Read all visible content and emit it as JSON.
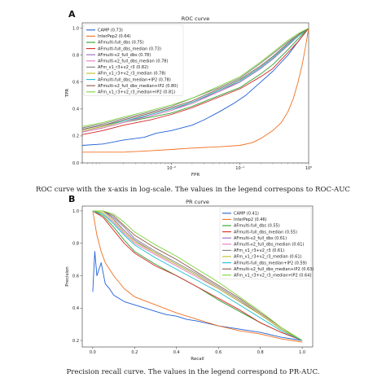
{
  "captions": {
    "a": "ROC curve with the x-axis in log-scale. The values in the legend correspons to ROC-AUC",
    "b": "Precision recall curve. The values in the legend correspond to PR-AUC."
  },
  "chart_data": [
    {
      "panel": "A",
      "type": "line",
      "title": "ROC curve",
      "xlabel": "FPR",
      "ylabel": "TPR",
      "xscale": "log",
      "xlim": [
        0.0005,
        1
      ],
      "ylim": [
        0,
        1.04
      ],
      "xticks": [
        0.01,
        0.1,
        1
      ],
      "xtick_labels": [
        "10⁻²",
        "10⁻¹",
        "10⁰"
      ],
      "yticks": [
        0,
        0.2,
        0.4,
        0.6,
        0.8,
        1.0
      ],
      "ytick_labels": [
        "0.0",
        "0.2",
        "0.4",
        "0.6",
        "0.8",
        "1.0"
      ],
      "legend_position": "upper-left",
      "series": [
        {
          "name": "CAMP (0.73)",
          "color": "#1f5fd6",
          "x": [
            0.0005,
            0.001,
            0.002,
            0.004,
            0.006,
            0.01,
            0.02,
            0.03,
            0.05,
            0.08,
            0.12,
            0.2,
            0.3,
            0.5,
            0.7,
            1.0
          ],
          "y": [
            0.13,
            0.14,
            0.17,
            0.19,
            0.22,
            0.24,
            0.28,
            0.32,
            0.38,
            0.44,
            0.5,
            0.6,
            0.68,
            0.8,
            0.9,
            1.0
          ]
        },
        {
          "name": "InterPep2 (0.64)",
          "color": "#f07020",
          "x": [
            0.0005,
            0.002,
            0.005,
            0.01,
            0.02,
            0.05,
            0.1,
            0.15,
            0.2,
            0.3,
            0.4,
            0.5,
            0.6,
            0.7,
            0.8,
            0.9,
            1.0
          ],
          "y": [
            0.08,
            0.08,
            0.09,
            0.1,
            0.11,
            0.12,
            0.13,
            0.15,
            0.18,
            0.24,
            0.3,
            0.38,
            0.48,
            0.6,
            0.72,
            0.86,
            1.0
          ]
        },
        {
          "name": "AFmulti-full_dbs (0.75)",
          "color": "#2ca02c",
          "x": [
            0.0005,
            0.001,
            0.002,
            0.005,
            0.01,
            0.02,
            0.05,
            0.1,
            0.2,
            0.3,
            0.5,
            0.7,
            1.0
          ],
          "y": [
            0.23,
            0.26,
            0.3,
            0.34,
            0.37,
            0.42,
            0.5,
            0.56,
            0.66,
            0.73,
            0.84,
            0.92,
            1.0
          ]
        },
        {
          "name": "AFmulti-full_dbs_median (0.73)",
          "color": "#d62728",
          "x": [
            0.0005,
            0.001,
            0.002,
            0.005,
            0.01,
            0.02,
            0.05,
            0.1,
            0.2,
            0.3,
            0.5,
            0.7,
            1.0
          ],
          "y": [
            0.21,
            0.24,
            0.28,
            0.32,
            0.36,
            0.41,
            0.49,
            0.55,
            0.64,
            0.7,
            0.82,
            0.9,
            1.0
          ]
        },
        {
          "name": "AFmulti-v2_full_dbs (0.78)",
          "color": "#9467bd",
          "x": [
            0.0005,
            0.001,
            0.002,
            0.005,
            0.01,
            0.02,
            0.05,
            0.1,
            0.2,
            0.3,
            0.5,
            0.7,
            1.0
          ],
          "y": [
            0.24,
            0.27,
            0.31,
            0.35,
            0.39,
            0.45,
            0.53,
            0.6,
            0.7,
            0.77,
            0.87,
            0.94,
            1.0
          ]
        },
        {
          "name": "AFmulti-v2_full_dbs_median (0.78)",
          "color": "#e377c2",
          "x": [
            0.0005,
            0.001,
            0.002,
            0.005,
            0.01,
            0.02,
            0.05,
            0.1,
            0.2,
            0.3,
            0.5,
            0.7,
            1.0
          ],
          "y": [
            0.23,
            0.26,
            0.3,
            0.35,
            0.39,
            0.44,
            0.53,
            0.61,
            0.71,
            0.78,
            0.88,
            0.94,
            1.0
          ]
        },
        {
          "name": "AFm_v1_r3+v2_r3 (0.82)",
          "color": "#7f7f7f",
          "x": [
            0.0005,
            0.001,
            0.002,
            0.005,
            0.01,
            0.02,
            0.05,
            0.1,
            0.2,
            0.3,
            0.5,
            0.7,
            1.0
          ],
          "y": [
            0.26,
            0.29,
            0.33,
            0.38,
            0.42,
            0.48,
            0.56,
            0.63,
            0.74,
            0.81,
            0.9,
            0.95,
            1.0
          ]
        },
        {
          "name": "AFm_v1_r3+v2_r3_median (0.78)",
          "color": "#bcbd22",
          "x": [
            0.0005,
            0.001,
            0.002,
            0.005,
            0.01,
            0.02,
            0.05,
            0.1,
            0.2,
            0.3,
            0.5,
            0.7,
            1.0
          ],
          "y": [
            0.24,
            0.27,
            0.31,
            0.36,
            0.4,
            0.45,
            0.54,
            0.61,
            0.71,
            0.78,
            0.88,
            0.94,
            1.0
          ]
        },
        {
          "name": "AFmulti-full_dbs_median+IP2 (0.78)",
          "color": "#17becf",
          "x": [
            0.0005,
            0.001,
            0.002,
            0.005,
            0.01,
            0.02,
            0.05,
            0.1,
            0.2,
            0.3,
            0.5,
            0.7,
            1.0
          ],
          "y": [
            0.25,
            0.28,
            0.31,
            0.36,
            0.4,
            0.45,
            0.54,
            0.61,
            0.71,
            0.78,
            0.88,
            0.94,
            1.0
          ]
        },
        {
          "name": "AFmulti-v2_full_dbs_median+IP2 (0.80)",
          "color": "#8c564b",
          "x": [
            0.0005,
            0.001,
            0.002,
            0.005,
            0.01,
            0.02,
            0.05,
            0.1,
            0.2,
            0.3,
            0.5,
            0.7,
            1.0
          ],
          "y": [
            0.25,
            0.28,
            0.32,
            0.37,
            0.41,
            0.46,
            0.55,
            0.62,
            0.72,
            0.79,
            0.89,
            0.95,
            1.0
          ]
        },
        {
          "name": "AFm_v1_r3+v2_r3_median+IP2 (0.81)",
          "color": "#7dd33a",
          "x": [
            0.0005,
            0.001,
            0.002,
            0.005,
            0.01,
            0.02,
            0.05,
            0.1,
            0.2,
            0.3,
            0.5,
            0.7,
            1.0
          ],
          "y": [
            0.27,
            0.3,
            0.34,
            0.39,
            0.43,
            0.48,
            0.57,
            0.64,
            0.75,
            0.82,
            0.91,
            0.96,
            1.0
          ]
        }
      ]
    },
    {
      "panel": "B",
      "type": "line",
      "title": "PR curve",
      "xlabel": "Recall",
      "ylabel": "Precision",
      "xlim": [
        -0.05,
        1.05
      ],
      "ylim": [
        0.16,
        1.03
      ],
      "xticks": [
        0,
        0.2,
        0.4,
        0.6,
        0.8,
        1.0
      ],
      "xtick_labels": [
        "0.0",
        "0.2",
        "0.4",
        "0.6",
        "0.8",
        "1.0"
      ],
      "yticks": [
        0.2,
        0.4,
        0.6,
        0.8,
        1.0
      ],
      "ytick_labels": [
        "0.2",
        "0.4",
        "0.6",
        "0.8",
        "1.0"
      ],
      "legend_position": "upper-right",
      "series": [
        {
          "name": "CAMP (0.41)",
          "color": "#1f5fd6",
          "x": [
            0.0,
            0.01,
            0.02,
            0.04,
            0.06,
            0.08,
            0.1,
            0.15,
            0.2,
            0.25,
            0.3,
            0.35,
            0.4,
            0.45,
            0.5,
            0.6,
            0.7,
            0.8,
            0.9,
            1.0
          ],
          "y": [
            0.5,
            0.75,
            0.6,
            0.68,
            0.55,
            0.52,
            0.48,
            0.44,
            0.42,
            0.4,
            0.38,
            0.36,
            0.35,
            0.33,
            0.32,
            0.29,
            0.27,
            0.25,
            0.22,
            0.2
          ]
        },
        {
          "name": "InterPep2 (0.46)",
          "color": "#f07020",
          "x": [
            0.0,
            0.02,
            0.04,
            0.06,
            0.1,
            0.15,
            0.2,
            0.3,
            0.4,
            0.5,
            0.6,
            0.7,
            0.8,
            0.9,
            1.0
          ],
          "y": [
            1.0,
            0.85,
            0.75,
            0.68,
            0.6,
            0.52,
            0.47,
            0.42,
            0.37,
            0.33,
            0.29,
            0.26,
            0.24,
            0.21,
            0.19
          ]
        },
        {
          "name": "AFmulti-full_dbs (0.55)",
          "color": "#2ca02c",
          "x": [
            0.0,
            0.05,
            0.1,
            0.15,
            0.2,
            0.3,
            0.4,
            0.5,
            0.6,
            0.7,
            0.8,
            0.9,
            1.0
          ],
          "y": [
            1.0,
            0.97,
            0.9,
            0.82,
            0.75,
            0.67,
            0.6,
            0.53,
            0.45,
            0.38,
            0.31,
            0.25,
            0.2
          ]
        },
        {
          "name": "AFmulti-full_dbs_median (0.55)",
          "color": "#d62728",
          "x": [
            0.0,
            0.05,
            0.1,
            0.15,
            0.2,
            0.3,
            0.4,
            0.5,
            0.6,
            0.7,
            0.8,
            0.9,
            1.0
          ],
          "y": [
            1.0,
            0.96,
            0.88,
            0.8,
            0.74,
            0.66,
            0.6,
            0.53,
            0.46,
            0.39,
            0.31,
            0.25,
            0.2
          ]
        },
        {
          "name": "AFmulti-v2_full_dbs (0.61)",
          "color": "#9467bd",
          "x": [
            0.0,
            0.05,
            0.1,
            0.15,
            0.2,
            0.3,
            0.4,
            0.5,
            0.6,
            0.7,
            0.8,
            0.9,
            1.0
          ],
          "y": [
            1.0,
            1.0,
            0.95,
            0.88,
            0.82,
            0.74,
            0.67,
            0.6,
            0.52,
            0.44,
            0.36,
            0.27,
            0.2
          ]
        },
        {
          "name": "AFmulti-v2_full_dbs_median (0.61)",
          "color": "#e377c2",
          "x": [
            0.0,
            0.05,
            0.1,
            0.15,
            0.2,
            0.3,
            0.4,
            0.5,
            0.6,
            0.7,
            0.8,
            0.9,
            1.0
          ],
          "y": [
            1.0,
            0.98,
            0.93,
            0.86,
            0.8,
            0.73,
            0.66,
            0.59,
            0.52,
            0.44,
            0.36,
            0.27,
            0.2
          ]
        },
        {
          "name": "AFm_v1_r3+v2_r3 (0.61)",
          "color": "#7f7f7f",
          "x": [
            0.0,
            0.05,
            0.1,
            0.15,
            0.2,
            0.3,
            0.4,
            0.5,
            0.6,
            0.7,
            0.8,
            0.9,
            1.0
          ],
          "y": [
            1.0,
            1.0,
            0.96,
            0.9,
            0.83,
            0.75,
            0.68,
            0.61,
            0.53,
            0.45,
            0.36,
            0.27,
            0.2
          ]
        },
        {
          "name": "AFm_v1_r3+v2_r3_median (0.61)",
          "color": "#bcbd22",
          "x": [
            0.0,
            0.05,
            0.1,
            0.15,
            0.2,
            0.3,
            0.4,
            0.5,
            0.6,
            0.7,
            0.8,
            0.9,
            1.0
          ],
          "y": [
            1.0,
            0.99,
            0.94,
            0.87,
            0.81,
            0.74,
            0.67,
            0.6,
            0.52,
            0.44,
            0.36,
            0.27,
            0.2
          ]
        },
        {
          "name": "AFmulti-full_dbs_median+IP2 (0.59)",
          "color": "#17becf",
          "x": [
            0.0,
            0.05,
            0.1,
            0.15,
            0.2,
            0.3,
            0.4,
            0.5,
            0.6,
            0.7,
            0.8,
            0.9,
            1.0
          ],
          "y": [
            1.0,
            0.98,
            0.92,
            0.85,
            0.79,
            0.71,
            0.64,
            0.57,
            0.5,
            0.42,
            0.34,
            0.26,
            0.2
          ]
        },
        {
          "name": "AFmulti-v2_full_dbs_median+IP2 (0.63)",
          "color": "#8c564b",
          "x": [
            0.0,
            0.05,
            0.1,
            0.15,
            0.2,
            0.3,
            0.4,
            0.5,
            0.6,
            0.7,
            0.8,
            0.9,
            1.0
          ],
          "y": [
            1.0,
            1.0,
            0.97,
            0.91,
            0.85,
            0.77,
            0.7,
            0.62,
            0.54,
            0.46,
            0.37,
            0.28,
            0.2
          ]
        },
        {
          "name": "AFm_v1_r3+v2_r3_median+IP2 (0.64)",
          "color": "#7dd33a",
          "x": [
            0.0,
            0.05,
            0.1,
            0.15,
            0.2,
            0.3,
            0.4,
            0.5,
            0.6,
            0.7,
            0.8,
            0.9,
            1.0
          ],
          "y": [
            1.0,
            1.0,
            0.98,
            0.93,
            0.87,
            0.79,
            0.72,
            0.64,
            0.56,
            0.47,
            0.38,
            0.28,
            0.2
          ]
        }
      ]
    }
  ]
}
